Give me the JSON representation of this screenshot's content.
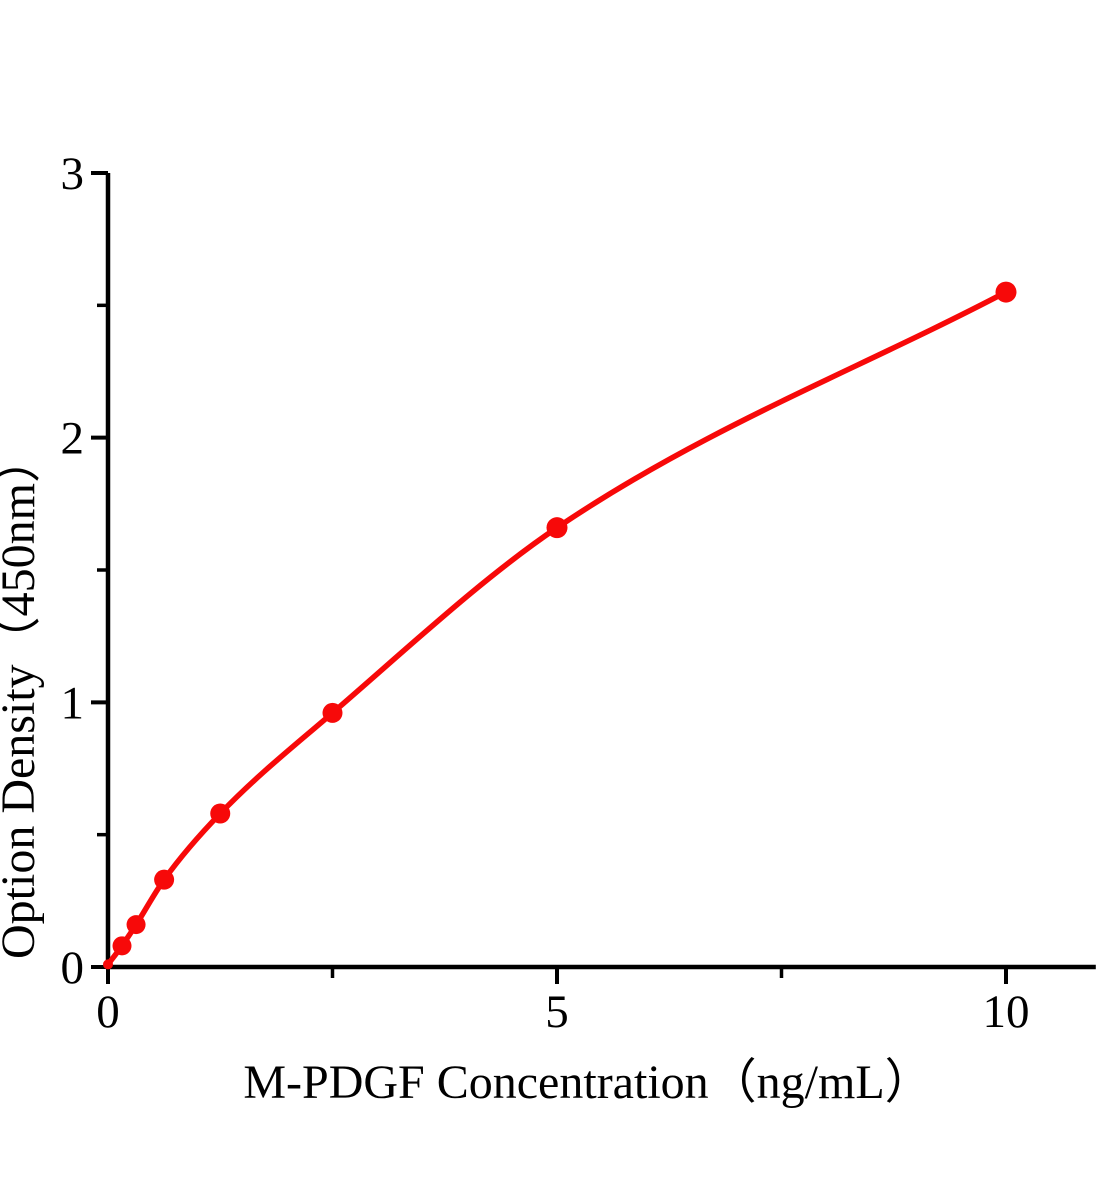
{
  "chart_data": {
    "type": "scatter",
    "title": "",
    "xlabel": "M-PDGF Concentration（ng/mL）",
    "ylabel": "Option Density（450nm）",
    "x": [
      0,
      0.156,
      0.3125,
      0.625,
      1.25,
      2.5,
      5,
      10
    ],
    "y": [
      0.01,
      0.08,
      0.16,
      0.33,
      0.58,
      0.96,
      1.66,
      2.55
    ],
    "marker_r": [
      5,
      9.5,
      9.5,
      10,
      10,
      10,
      10.5,
      10.5
    ],
    "xlim": [
      0,
      11
    ],
    "ylim": [
      0,
      3
    ],
    "x_major_ticks": [
      0,
      5,
      10
    ],
    "x_tick_labels": [
      "0",
      "5",
      "10"
    ],
    "x_minor_ticks": [
      2.5,
      7.5
    ],
    "y_major_ticks": [
      0,
      1,
      2,
      3
    ],
    "y_tick_labels": [
      "0",
      "1",
      "2",
      "3"
    ],
    "y_minor_ticks": [
      0.5,
      1.5,
      2.5
    ],
    "grid": false,
    "legend": null,
    "line_color": "#f70909",
    "axis_color": "#000000",
    "background_color": "#ffffff"
  }
}
